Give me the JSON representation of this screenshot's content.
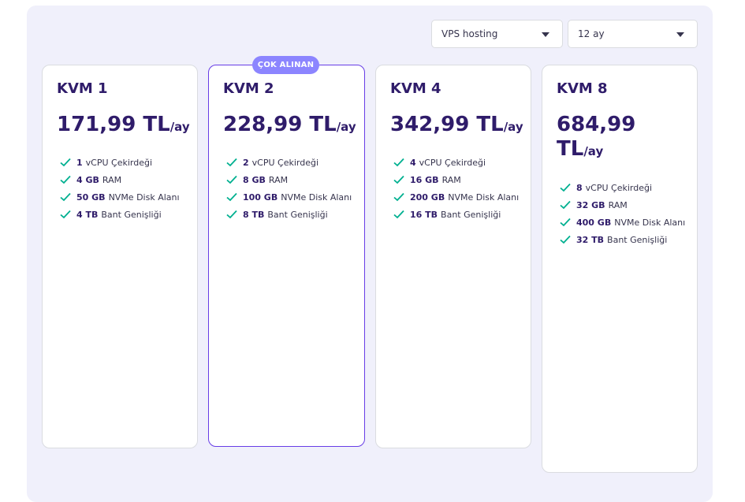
{
  "filters": {
    "product": "VPS hosting",
    "period": "12 ay"
  },
  "badge": "ÇOK ALINAN",
  "plans": [
    {
      "name": "KVM 1",
      "price": "171,99 TL",
      "per": "/ay",
      "features": [
        {
          "value": "1",
          "label": "vCPU Çekirdeği"
        },
        {
          "value": "4 GB",
          "label": "RAM"
        },
        {
          "value": "50 GB",
          "label": "NVMe Disk Alanı"
        },
        {
          "value": "4 TB",
          "label": "Bant Genişliği"
        }
      ]
    },
    {
      "name": "KVM 2",
      "price": "228,99 TL",
      "per": "/ay",
      "features": [
        {
          "value": "2",
          "label": "vCPU Çekirdeği"
        },
        {
          "value": "8 GB",
          "label": "RAM"
        },
        {
          "value": "100 GB",
          "label": "NVMe Disk Alanı"
        },
        {
          "value": "8 TB",
          "label": "Bant Genişliği"
        }
      ]
    },
    {
      "name": "KVM 4",
      "price": "342,99 TL",
      "per": "/ay",
      "features": [
        {
          "value": "4",
          "label": "vCPU Çekirdeği"
        },
        {
          "value": "16 GB",
          "label": "RAM"
        },
        {
          "value": "200 GB",
          "label": "NVMe Disk Alanı"
        },
        {
          "value": "16 TB",
          "label": "Bant Genişliği"
        }
      ]
    },
    {
      "name": "KVM 8",
      "price_line1": "684,99",
      "price_line2": "TL",
      "per": "/ay",
      "features": [
        {
          "value": "8",
          "label": "vCPU Çekirdeği"
        },
        {
          "value": "32 GB",
          "label": "RAM"
        },
        {
          "value": "400 GB",
          "label": "NVMe Disk Alanı"
        },
        {
          "value": "32 TB",
          "label": "Bant Genişliği"
        }
      ]
    }
  ],
  "colors": {
    "primary": "#673de6",
    "heading": "#2f1c6a",
    "check": "#00b090",
    "badge": "#8c85ff",
    "panel": "#f0f0fb"
  }
}
